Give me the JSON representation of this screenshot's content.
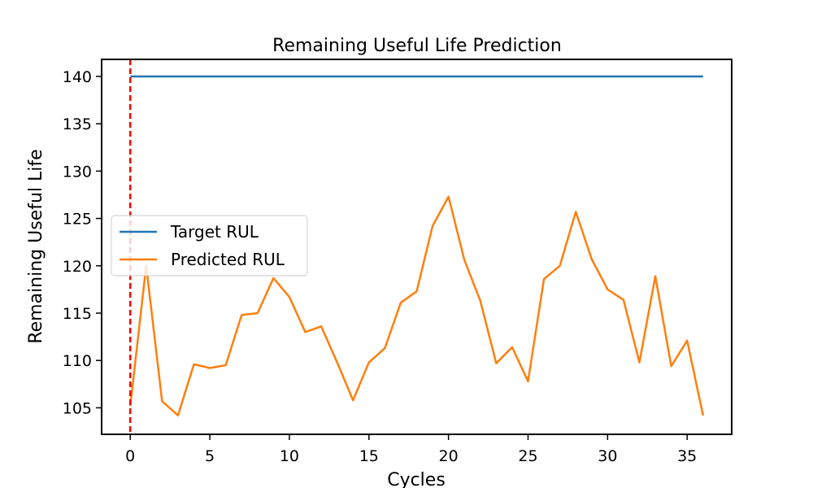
{
  "chart_data": {
    "type": "line",
    "title": "Remaining Useful Life Prediction",
    "xlabel": "Cycles",
    "ylabel": "Remaining Useful Life",
    "xlim": [
      -1.8,
      37.8
    ],
    "ylim": [
      102.2,
      141.8
    ],
    "xticks": [
      0,
      5,
      10,
      15,
      20,
      25,
      30,
      35
    ],
    "yticks": [
      105,
      110,
      115,
      120,
      125,
      130,
      135,
      140
    ],
    "grid": false,
    "legend_position": "center-left",
    "vline": {
      "x": 0,
      "color": "#ff0000",
      "style": "dashed"
    },
    "series": [
      {
        "name": "Target RUL",
        "color": "#1f77b4",
        "x": [
          0,
          36
        ],
        "y": [
          140,
          140
        ]
      },
      {
        "name": "Predicted RUL",
        "color": "#ff7f0e",
        "x": [
          0,
          1,
          2,
          3,
          4,
          5,
          6,
          7,
          8,
          9,
          10,
          11,
          12,
          13,
          14,
          15,
          16,
          17,
          18,
          19,
          20,
          21,
          22,
          23,
          24,
          25,
          26,
          27,
          28,
          29,
          30,
          31,
          32,
          33,
          34,
          35,
          36
        ],
        "y": [
          105.2,
          120.0,
          105.7,
          104.2,
          109.6,
          109.2,
          109.5,
          114.8,
          115.0,
          118.7,
          116.7,
          113.0,
          113.6,
          109.8,
          105.8,
          109.8,
          111.3,
          116.1,
          117.3,
          124.2,
          127.3,
          120.6,
          116.3,
          109.7,
          111.4,
          107.8,
          118.6,
          120.0,
          125.7,
          120.7,
          117.5,
          116.4,
          109.8,
          118.9,
          109.4,
          112.1,
          104.2
        ]
      }
    ]
  }
}
